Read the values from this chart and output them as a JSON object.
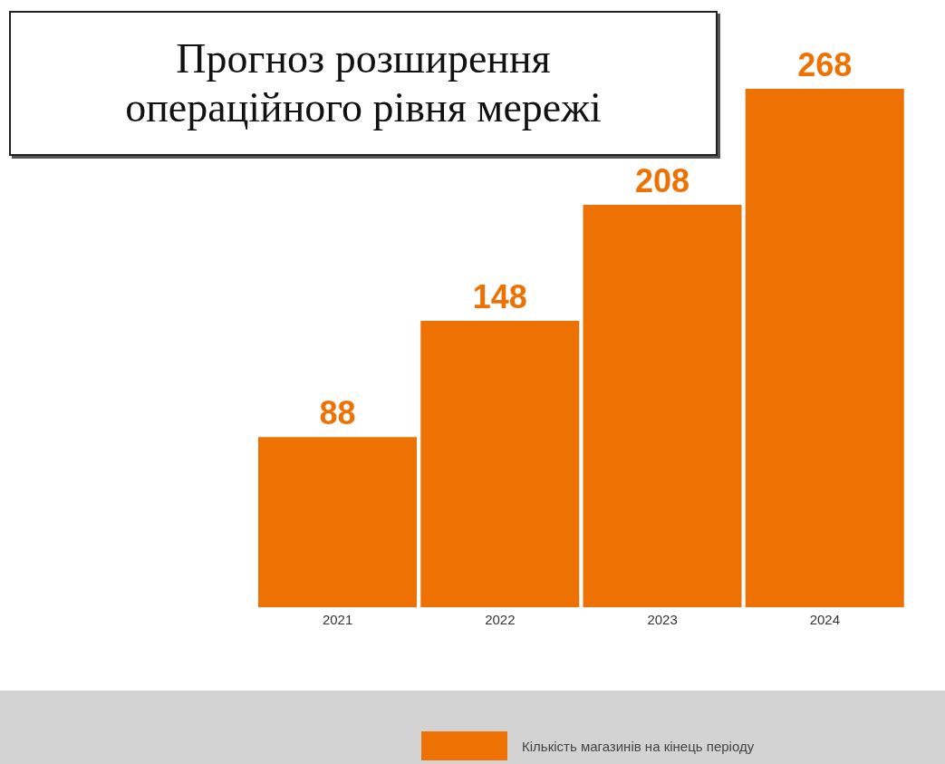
{
  "chart_data": {
    "type": "bar",
    "title": "Прогноз розширення операційного рівня мережі",
    "categories": [
      "2021",
      "2022",
      "2023",
      "2024"
    ],
    "series": [
      {
        "name": "Кількість магазинів на кінець періоду",
        "color": "#ee7203",
        "values": [
          88,
          148,
          208,
          268
        ]
      }
    ],
    "data_labels": true,
    "legend": "bottom",
    "grid": false
  }
}
